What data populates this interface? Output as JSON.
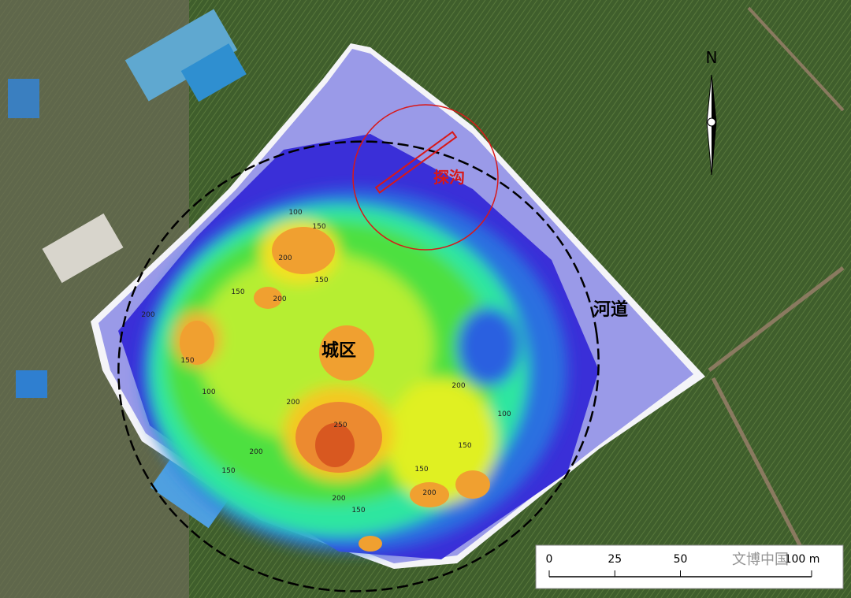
{
  "map": {
    "north_label": "N",
    "labels": {
      "trench": "探沟",
      "river": "河道",
      "city": "城区"
    },
    "contour_labels": [
      "100",
      "150",
      "200",
      "150",
      "200",
      "150",
      "200",
      "150",
      "100",
      "200",
      "250",
      "200",
      "150",
      "200",
      "150",
      "200",
      "150",
      "100",
      "150",
      "200"
    ],
    "scale_bar": {
      "ticks": [
        0,
        25,
        50,
        {
          "value": 100,
          "label": "100 m"
        }
      ]
    },
    "watermark": "文博中国"
  }
}
